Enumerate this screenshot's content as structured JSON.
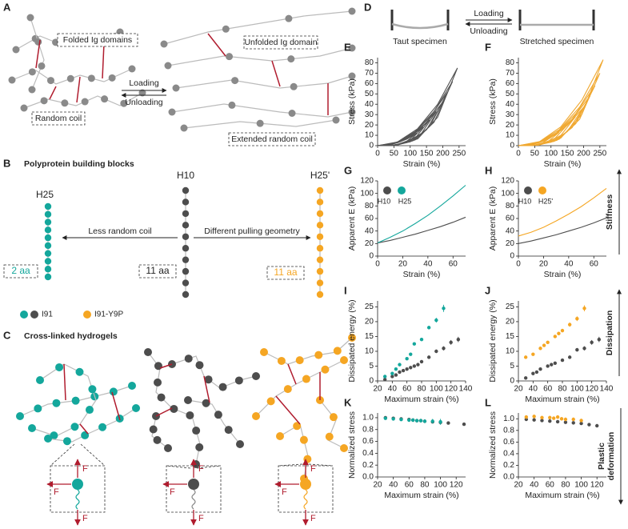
{
  "panels": {
    "A": {
      "label": "A",
      "folded": "Folded Ig domains",
      "random_coil": "Random coil",
      "loading": "Loading",
      "unloading": "Unloading",
      "unfolded": "Unfolded Ig domain",
      "extended": "Extended random coil"
    },
    "B": {
      "label": "B",
      "title": "Polyprotein building blocks",
      "h25": "H25",
      "h10": "H10",
      "h25p": "H25'",
      "less": "Less random coil",
      "different": "Different pulling geometry",
      "aa_h25": "2 aa",
      "aa_h10": "11 aa",
      "aa_h25p": "11 aa",
      "legend_i91": "I91",
      "legend_y9p": "I91-Y9P"
    },
    "C": {
      "label": "C",
      "title": "Cross-linked hydrogels",
      "force": "F"
    },
    "D": {
      "label": "D",
      "taut": "Taut specimen",
      "stretched": "Stretched specimen",
      "loading": "Loading",
      "unloading": "Unloading"
    },
    "side": {
      "stiffness": "Stiffness",
      "dissipation": "Dissipation",
      "plastic_deformation": [
        "Plastic",
        "deformation"
      ]
    }
  },
  "chart_data": [
    {
      "type": "line",
      "label": "E",
      "ylabel": "Stress (kPa)",
      "xlabel": "Strain (%)",
      "color": "#555555",
      "xlim": [
        0,
        270
      ],
      "xticks": [
        0,
        50,
        100,
        150,
        200,
        250
      ],
      "ylim": [
        0,
        85
      ],
      "yticks": [
        0,
        10,
        20,
        30,
        40,
        50,
        60,
        70,
        80
      ],
      "series": [
        {
          "x": [
            0,
            30,
            60,
            90,
            120,
            90,
            60,
            30,
            6
          ],
          "values": [
            0,
            0.6,
            2.6,
            6.4,
            12,
            4.4,
            1.1,
            0.1,
            0
          ]
        },
        {
          "x": [
            0,
            35,
            70,
            105,
            140,
            105,
            70,
            35,
            7
          ],
          "values": [
            0,
            0.8,
            3.9,
            9.6,
            18,
            6.6,
            1.6,
            0.1,
            0
          ]
        },
        {
          "x": [
            0,
            40,
            80,
            120,
            160,
            120,
            80,
            40,
            8
          ],
          "values": [
            0,
            1.2,
            5.5,
            13.3,
            25,
            9.1,
            2.2,
            0.2,
            0
          ]
        },
        {
          "x": [
            0,
            45,
            90,
            135,
            180,
            135,
            90,
            45,
            9
          ],
          "values": [
            0,
            1.6,
            7.2,
            17.5,
            33,
            12,
            2.9,
            0.3,
            0
          ]
        },
        {
          "x": [
            0,
            50,
            100,
            150,
            200,
            150,
            100,
            50,
            10
          ],
          "values": [
            0,
            2,
            9.2,
            22.3,
            42,
            15.3,
            3.7,
            0.3,
            0
          ]
        },
        {
          "x": [
            0,
            54,
            108,
            161,
            215,
            161,
            108,
            54,
            11
          ],
          "values": [
            0,
            2.4,
            11.3,
            27.6,
            52,
            19,
            4.6,
            0.4,
            0
          ]
        },
        {
          "x": [
            0,
            58,
            115,
            173,
            230,
            173,
            115,
            58,
            12
          ],
          "values": [
            0,
            2.9,
            13.5,
            32.9,
            62,
            22.6,
            5.5,
            0.5,
            0
          ]
        },
        {
          "x": [
            0,
            61,
            123,
            184,
            245,
            184,
            123,
            61,
            12
          ],
          "values": [
            0,
            3.5,
            16.4,
            39.8,
            75,
            27.4,
            6.6,
            0.6,
            0
          ]
        }
      ]
    },
    {
      "type": "line",
      "label": "F",
      "ylabel": "Stress (kPa)",
      "xlabel": "Strain (%)",
      "color": "#f0a830",
      "xlim": [
        0,
        270
      ],
      "xticks": [
        0,
        50,
        100,
        150,
        200,
        250
      ],
      "ylim": [
        0,
        85
      ],
      "yticks": [
        0,
        10,
        20,
        30,
        40,
        50,
        60,
        70,
        80
      ],
      "series": [
        {
          "x": [
            0,
            25,
            50,
            75,
            100,
            75,
            50,
            25,
            5
          ],
          "values": [
            0,
            0.4,
            1.7,
            4.2,
            8,
            2.9,
            0.7,
            0.1,
            0
          ]
        },
        {
          "x": [
            0,
            31,
            63,
            94,
            125,
            94,
            63,
            31,
            6
          ],
          "values": [
            0,
            0.6,
            2.8,
            6.9,
            13,
            4.7,
            1.1,
            0.1,
            0
          ]
        },
        {
          "x": [
            0,
            38,
            75,
            113,
            150,
            113,
            75,
            38,
            8
          ],
          "values": [
            0,
            0.9,
            4.4,
            10.6,
            20,
            7.3,
            1.8,
            0.2,
            0
          ]
        },
        {
          "x": [
            0,
            44,
            88,
            131,
            175,
            131,
            88,
            44,
            9
          ],
          "values": [
            0,
            1.3,
            6.1,
            14.9,
            28,
            10.2,
            2.5,
            0.2,
            0
          ]
        },
        {
          "x": [
            0,
            50,
            100,
            150,
            200,
            150,
            100,
            50,
            10
          ],
          "values": [
            0,
            1.7,
            8.1,
            19.6,
            37,
            13.5,
            3.3,
            0.3,
            0
          ]
        },
        {
          "x": [
            0,
            55,
            110,
            165,
            220,
            165,
            110,
            55,
            11
          ],
          "values": [
            0,
            2.3,
            10.5,
            25.5,
            48,
            17.5,
            4.2,
            0.4,
            0
          ]
        },
        {
          "x": [
            0,
            59,
            118,
            176,
            235,
            176,
            118,
            59,
            12
          ],
          "values": [
            0,
            2.7,
            12.6,
            30.8,
            58,
            21.2,
            5.1,
            0.5,
            0
          ]
        },
        {
          "x": [
            0,
            63,
            125,
            188,
            250,
            188,
            125,
            63,
            13
          ],
          "values": [
            0,
            3.3,
            15.3,
            37.2,
            70,
            25.6,
            6.2,
            0.6,
            0
          ]
        },
        {
          "x": [
            0,
            65,
            130,
            195,
            260,
            195,
            130,
            65,
            13
          ],
          "values": [
            0,
            3.9,
            18.1,
            44.1,
            83,
            30.3,
            7.3,
            0.7,
            0
          ]
        }
      ]
    },
    {
      "type": "line",
      "label": "G",
      "ylabel": "Apparent E (kPa)",
      "xlabel": "Strain (%)",
      "x": [
        0,
        10,
        20,
        30,
        40,
        50,
        60,
        70
      ],
      "xlim": [
        0,
        70
      ],
      "xticks": [
        0,
        20,
        40,
        60
      ],
      "ylim": [
        0,
        120
      ],
      "yticks": [
        0,
        20,
        40,
        60,
        80,
        100,
        120
      ],
      "series": [
        {
          "name": "H10",
          "color": "#4d4d4d",
          "values": [
            21,
            25,
            30,
            35,
            41,
            47,
            54,
            62
          ]
        },
        {
          "name": "H25",
          "color": "#14a79c",
          "values": [
            21,
            30,
            40,
            52,
            65,
            80,
            96,
            113
          ]
        }
      ]
    },
    {
      "type": "line",
      "label": "H",
      "ylabel": "Apparent E (kPa)",
      "xlabel": "Strain (%)",
      "x": [
        0,
        10,
        20,
        30,
        40,
        50,
        60,
        70
      ],
      "xlim": [
        0,
        70
      ],
      "xticks": [
        0,
        20,
        40,
        60
      ],
      "ylim": [
        0,
        120
      ],
      "yticks": [
        0,
        20,
        40,
        60,
        80,
        100,
        120
      ],
      "series": [
        {
          "name": "H10",
          "color": "#4d4d4d",
          "values": [
            20,
            24,
            29,
            34,
            40,
            46,
            53,
            61
          ]
        },
        {
          "name": "H25'",
          "color": "#f5a623",
          "values": [
            32,
            38,
            46,
            56,
            67,
            79,
            93,
            108
          ]
        }
      ]
    },
    {
      "type": "scatter",
      "label": "I",
      "ylabel": "Dissipated energy (%)",
      "xlabel": "Maximum strain (%)",
      "xlim": [
        20,
        140
      ],
      "xticks": [
        20,
        40,
        60,
        80,
        100,
        120,
        140
      ],
      "ylim": [
        0,
        27
      ],
      "yticks": [
        0,
        5,
        10,
        15,
        20,
        25
      ],
      "series": [
        {
          "color": "#4d4d4d",
          "x": [
            30,
            40,
            45,
            50,
            55,
            60,
            65,
            70,
            75,
            80,
            90,
            100,
            110,
            120,
            130
          ],
          "values": [
            0.5,
            1.5,
            2,
            3,
            3.5,
            4,
            4.5,
            5,
            5.5,
            6.5,
            8,
            10,
            11,
            13,
            14
          ],
          "errors": [
            0.3,
            0.3,
            0.3,
            0.3,
            0.3,
            0.3,
            0.3,
            0.3,
            0.4,
            0.4,
            0.5,
            0.6,
            0.7,
            0.8,
            0.9
          ]
        },
        {
          "color": "#14a79c",
          "x": [
            30,
            40,
            45,
            50,
            60,
            65,
            70,
            80,
            90,
            100,
            110
          ],
          "values": [
            1.5,
            2.5,
            4,
            5.5,
            7.5,
            9,
            12.5,
            14,
            18,
            20.5,
            24.5
          ],
          "errors": [
            0.3,
            0.3,
            0.3,
            0.4,
            0.4,
            0.4,
            0.5,
            0.5,
            0.6,
            0.8,
            1.2
          ]
        }
      ]
    },
    {
      "type": "scatter",
      "label": "J",
      "ylabel": "Dissipated energy (%)",
      "xlabel": "Maximum strain (%)",
      "xlim": [
        20,
        140
      ],
      "xticks": [
        20,
        40,
        60,
        80,
        100,
        120,
        140
      ],
      "ylim": [
        0,
        27
      ],
      "yticks": [
        0,
        5,
        10,
        15,
        20,
        25
      ],
      "series": [
        {
          "color": "#4d4d4d",
          "x": [
            30,
            40,
            45,
            50,
            60,
            65,
            70,
            80,
            90,
            100,
            110,
            120,
            130
          ],
          "values": [
            1,
            2.5,
            3,
            4,
            5,
            5.5,
            6,
            7,
            8,
            10.5,
            11,
            13,
            14
          ],
          "errors": [
            0.3,
            0.3,
            0.3,
            0.3,
            0.3,
            0.3,
            0.4,
            0.4,
            0.5,
            0.6,
            0.7,
            0.8,
            0.9
          ]
        },
        {
          "color": "#f5a623",
          "x": [
            30,
            40,
            50,
            55,
            60,
            70,
            75,
            80,
            90,
            100,
            110
          ],
          "values": [
            8,
            9,
            11,
            12,
            13,
            15,
            16,
            17,
            19,
            21,
            24.5
          ],
          "errors": [
            0.4,
            0.4,
            0.4,
            0.4,
            0.5,
            0.5,
            0.5,
            0.6,
            0.7,
            0.8,
            1
          ]
        }
      ]
    },
    {
      "type": "scatter",
      "label": "K",
      "ylabel": "Normalized stress",
      "xlabel": "Maximum strain (%)",
      "xlim": [
        20,
        132
      ],
      "xticks": [
        20,
        40,
        60,
        80,
        100,
        120
      ],
      "ylim": [
        0,
        1.08
      ],
      "yticks": [
        {
          "value": 0,
          "label": "0.0"
        },
        0.2,
        0.4,
        0.6,
        0.8,
        {
          "value": 1,
          "label": "1.0"
        }
      ],
      "series": [
        {
          "color": "#4d4d4d",
          "x": [
            30,
            40,
            50,
            60,
            65,
            70,
            75,
            80,
            90,
            100,
            110,
            130
          ],
          "values": [
            1.0,
            0.99,
            0.98,
            0.97,
            0.96,
            0.95,
            0.95,
            0.94,
            0.93,
            0.92,
            0.91,
            0.89
          ],
          "errors": [
            0.02,
            0.02,
            0.02,
            0.02,
            0.02,
            0.02,
            0.02,
            0.02,
            0.02,
            0.02,
            0.02,
            0.02
          ]
        },
        {
          "color": "#14a79c",
          "x": [
            30,
            40,
            50,
            60,
            65,
            70,
            75,
            80,
            90,
            100
          ],
          "values": [
            0.99,
            0.98,
            0.97,
            0.96,
            0.96,
            0.95,
            0.95,
            0.94,
            0.94,
            0.93
          ],
          "errors": [
            0.02,
            0.02,
            0.02,
            0.03,
            0.03,
            0.03,
            0.03,
            0.03,
            0.04,
            0.05
          ]
        }
      ]
    },
    {
      "type": "scatter",
      "label": "L",
      "ylabel": "Normalized stress",
      "xlabel": "Maximum strain (%)",
      "xlim": [
        20,
        132
      ],
      "xticks": [
        20,
        40,
        60,
        80,
        100,
        120
      ],
      "ylim": [
        0,
        1.1
      ],
      "yticks": [
        {
          "value": 0,
          "label": "0.0"
        },
        0.2,
        0.4,
        0.6,
        0.8,
        {
          "value": 1,
          "label": "1.0"
        }
      ],
      "series": [
        {
          "color": "#4d4d4d",
          "x": [
            30,
            40,
            50,
            60,
            70,
            80,
            90,
            100,
            110,
            120
          ],
          "values": [
            0.99,
            0.98,
            0.97,
            0.96,
            0.95,
            0.94,
            0.93,
            0.92,
            0.9,
            0.88
          ],
          "errors": [
            0.02,
            0.02,
            0.02,
            0.02,
            0.02,
            0.02,
            0.02,
            0.02,
            0.02,
            0.02
          ]
        },
        {
          "color": "#f5a623",
          "x": [
            30,
            40,
            50,
            60,
            65,
            70,
            75,
            80,
            90,
            100
          ],
          "values": [
            1.03,
            1.04,
            1.02,
            1.02,
            1.01,
            1.03,
            1.0,
            0.99,
            0.99,
            0.97
          ],
          "errors": [
            0.03,
            0.03,
            0.03,
            0.03,
            0.03,
            0.03,
            0.03,
            0.03,
            0.03,
            0.03
          ]
        }
      ]
    }
  ]
}
